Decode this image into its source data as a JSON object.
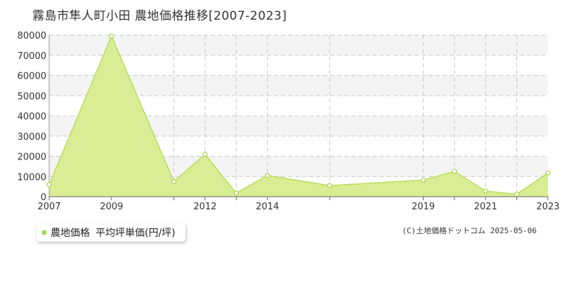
{
  "title": "霧島市隼人町小田  農地価格推移[2007-2023]",
  "legend": {
    "series_name": "農地価格",
    "unit_label": "平均坪単価(円/坪)"
  },
  "copyright": "(C)土地価格ドットコム 2025-05-06",
  "colors": {
    "fill": "#d8ec8f",
    "line": "#b8dd5a",
    "marker_fill": "#ffffff",
    "marker_stroke": "#a8d048",
    "grid": "#c8c8c8",
    "band": "#f4f4f4",
    "axis_text": "#333333"
  },
  "chart_data": {
    "type": "area",
    "x": [
      2007,
      2009,
      2011,
      2012,
      2013,
      2014,
      2016,
      2019,
      2020,
      2021,
      2022,
      2023
    ],
    "values": [
      6000,
      79500,
      7500,
      21000,
      1800,
      10500,
      5500,
      8200,
      12500,
      2800,
      1200,
      11800
    ],
    "xlim": [
      2007,
      2023
    ],
    "x_ticks": [
      2007,
      2009,
      2012,
      2014,
      2019,
      2021,
      2023
    ],
    "y_ticks": [
      0,
      10000,
      20000,
      30000,
      40000,
      50000,
      60000,
      70000,
      80000
    ],
    "ylim": [
      0,
      80000
    ],
    "grid": true,
    "legend_position": "bottom-left"
  }
}
